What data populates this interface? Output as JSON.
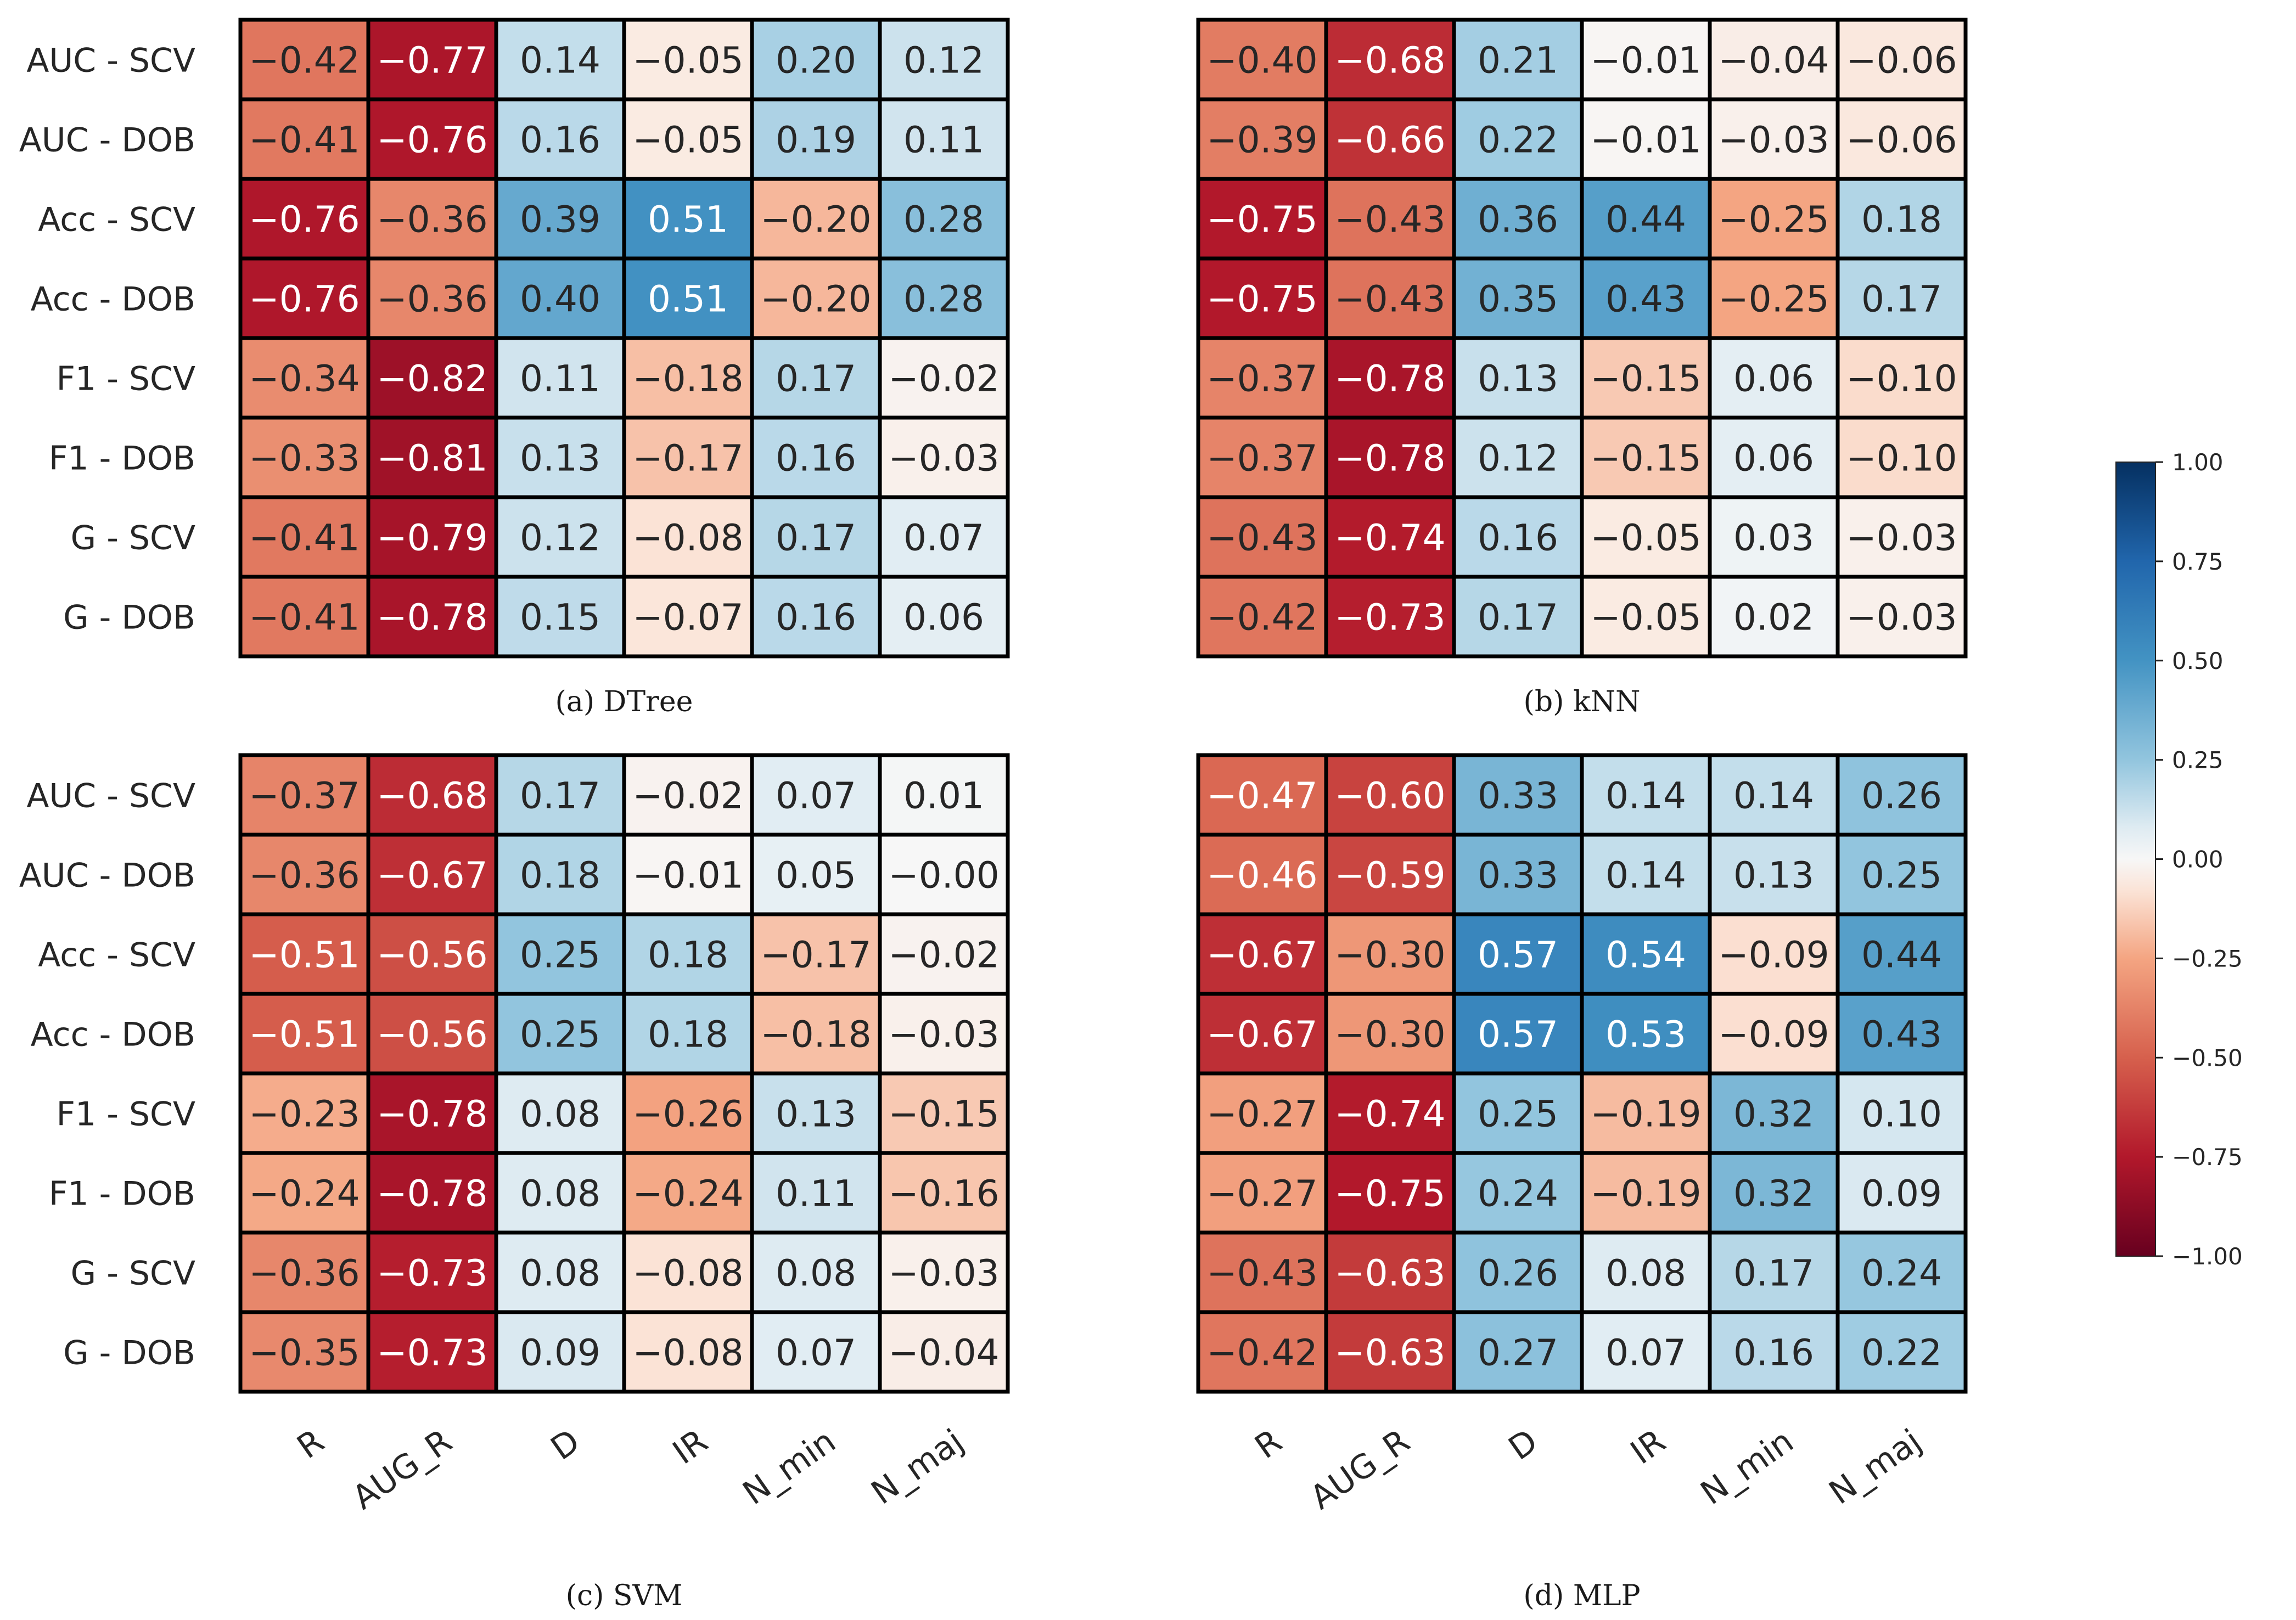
{
  "chart_data": {
    "type": "heatmap",
    "row_labels": [
      "AUC - SCV",
      "AUC - DOB",
      "Acc - SCV",
      "Acc - DOB",
      "F1 - SCV",
      "F1 - DOB",
      "G - SCV",
      "G - DOB"
    ],
    "col_labels": [
      "R",
      "AUG_R",
      "D",
      "IR",
      "N_min",
      "N_maj"
    ],
    "vmin": -1.0,
    "vmax": 1.0,
    "colormap": "RdBu",
    "colorbar": {
      "ticks": [
        1.0,
        0.75,
        0.5,
        0.25,
        0.0,
        -0.25,
        -0.5,
        -0.75,
        -1.0
      ],
      "tick_labels": [
        "1.00",
        "0.75",
        "0.50",
        "0.25",
        "0.00",
        "−0.25",
        "−0.50",
        "−0.75",
        "−1.00"
      ]
    },
    "panels": [
      {
        "caption": "(a) DTree",
        "values": [
          [
            -0.42,
            -0.77,
            0.14,
            -0.05,
            0.2,
            0.12
          ],
          [
            -0.41,
            -0.76,
            0.16,
            -0.05,
            0.19,
            0.11
          ],
          [
            -0.76,
            -0.36,
            0.39,
            0.51,
            -0.2,
            0.28
          ],
          [
            -0.76,
            -0.36,
            0.4,
            0.51,
            -0.2,
            0.28
          ],
          [
            -0.34,
            -0.82,
            0.11,
            -0.18,
            0.17,
            -0.02
          ],
          [
            -0.33,
            -0.81,
            0.13,
            -0.17,
            0.16,
            -0.03
          ],
          [
            -0.41,
            -0.79,
            0.12,
            -0.08,
            0.17,
            0.07
          ],
          [
            -0.41,
            -0.78,
            0.15,
            -0.07,
            0.16,
            0.06
          ]
        ]
      },
      {
        "caption": "(b) kNN",
        "values": [
          [
            -0.4,
            -0.68,
            0.21,
            -0.01,
            -0.04,
            -0.06
          ],
          [
            -0.39,
            -0.66,
            0.22,
            -0.01,
            -0.03,
            -0.06
          ],
          [
            -0.75,
            -0.43,
            0.36,
            0.44,
            -0.25,
            0.18
          ],
          [
            -0.75,
            -0.43,
            0.35,
            0.43,
            -0.25,
            0.17
          ],
          [
            -0.37,
            -0.78,
            0.13,
            -0.15,
            0.06,
            -0.1
          ],
          [
            -0.37,
            -0.78,
            0.12,
            -0.15,
            0.06,
            -0.1
          ],
          [
            -0.43,
            -0.74,
            0.16,
            -0.05,
            0.03,
            -0.03
          ],
          [
            -0.42,
            -0.73,
            0.17,
            -0.05,
            0.02,
            -0.03
          ]
        ]
      },
      {
        "caption": "(c) SVM",
        "values": [
          [
            -0.37,
            -0.68,
            0.17,
            -0.02,
            0.07,
            0.01
          ],
          [
            -0.36,
            -0.67,
            0.18,
            -0.01,
            0.05,
            -0.0
          ],
          [
            -0.51,
            -0.56,
            0.25,
            0.18,
            -0.17,
            -0.02
          ],
          [
            -0.51,
            -0.56,
            0.25,
            0.18,
            -0.18,
            -0.03
          ],
          [
            -0.23,
            -0.78,
            0.08,
            -0.26,
            0.13,
            -0.15
          ],
          [
            -0.24,
            -0.78,
            0.08,
            -0.24,
            0.11,
            -0.16
          ],
          [
            -0.36,
            -0.73,
            0.08,
            -0.08,
            0.08,
            -0.03
          ],
          [
            -0.35,
            -0.73,
            0.09,
            -0.08,
            0.07,
            -0.04
          ]
        ]
      },
      {
        "caption": "(d) MLP",
        "values": [
          [
            -0.47,
            -0.6,
            0.33,
            0.14,
            0.14,
            0.26
          ],
          [
            -0.46,
            -0.59,
            0.33,
            0.14,
            0.13,
            0.25
          ],
          [
            -0.67,
            -0.3,
            0.57,
            0.54,
            -0.09,
            0.44
          ],
          [
            -0.67,
            -0.3,
            0.57,
            0.53,
            -0.09,
            0.43
          ],
          [
            -0.27,
            -0.74,
            0.25,
            -0.19,
            0.32,
            0.1
          ],
          [
            -0.27,
            -0.75,
            0.24,
            -0.19,
            0.32,
            0.09
          ],
          [
            -0.43,
            -0.63,
            0.26,
            0.08,
            0.17,
            0.24
          ],
          [
            -0.42,
            -0.63,
            0.27,
            0.07,
            0.16,
            0.22
          ]
        ]
      }
    ]
  }
}
